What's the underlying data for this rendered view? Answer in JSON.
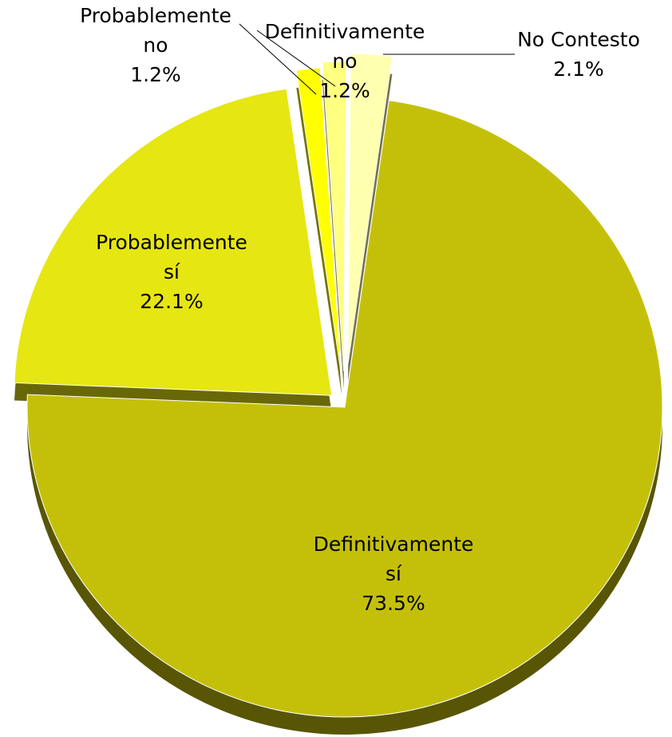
{
  "chart_data": {
    "type": "pie",
    "categories": [
      "Definitivamente\nsí",
      "Probablemente\nsí",
      "Probablemente\nno",
      "Definitivamente\nno",
      "No Contesto"
    ],
    "values": [
      73.5,
      22.1,
      1.2,
      1.2,
      2.1
    ],
    "value_labels": [
      "73.5%",
      "22.1%",
      "1.2%",
      "1.2%",
      "2.1%"
    ],
    "colors": [
      "#c4c00a",
      "#e6e613",
      "#ffff00",
      "#ffff80",
      "#ffffb0"
    ]
  }
}
